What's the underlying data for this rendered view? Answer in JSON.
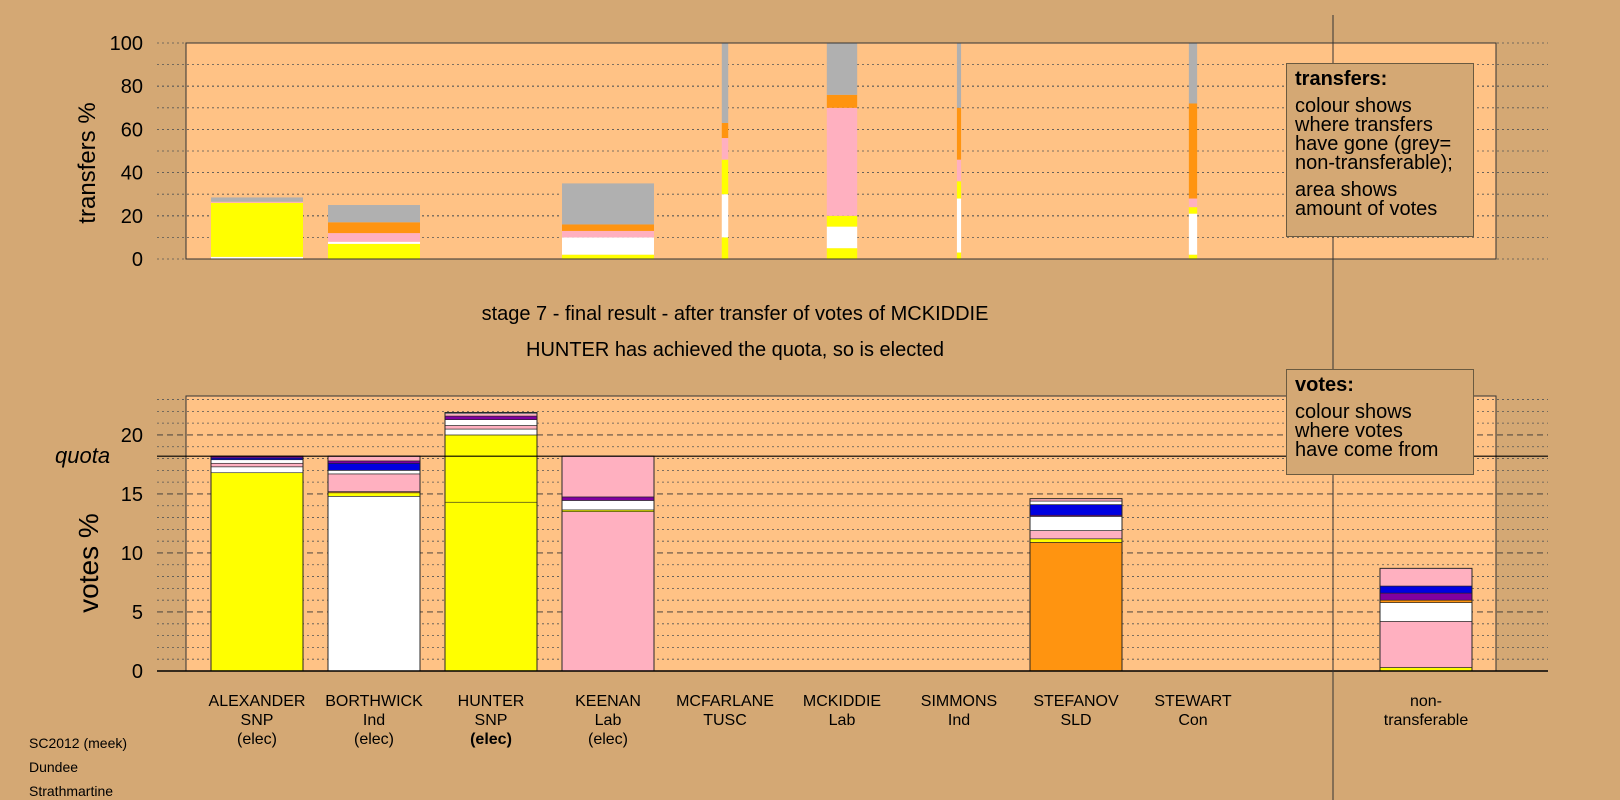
{
  "colors": {
    "background": "#d4a874",
    "plot_background": "#ffc285",
    "SNP": "#ffff00",
    "Ind": "#ffffff",
    "Lab": "#ffb0c0",
    "SLD": "#ff9410",
    "TUSC": "#8000a0",
    "Con": "#0000e0",
    "nontransferable": "#b0b0b0"
  },
  "chart_data": [
    {
      "type": "bar",
      "stacked": true,
      "ylabel": "transfers %",
      "ylim": [
        0,
        100
      ],
      "yticks": [
        0,
        20,
        40,
        60,
        80,
        100
      ],
      "grid": "dotted",
      "categories": [
        "ALEXANDER",
        "BORTHWICK",
        "HUNTER",
        "KEENAN",
        "MCFARLANE",
        "MCKIDDIE",
        "SIMMONS",
        "STEFANOV",
        "STEWART",
        "non-transferable"
      ],
      "bar_width_note": "bar width proportional to amount of votes transferred",
      "bars": [
        {
          "category": "ALEXANDER",
          "width": 1.0,
          "segments": [
            {
              "color": "#ffffff",
              "value": 1
            },
            {
              "color": "#ffff00",
              "value": 25
            },
            {
              "color": "#ffb0c0",
              "value": 0.5
            },
            {
              "color": "#b0b0b0",
              "value": 2
            }
          ]
        },
        {
          "category": "BORTHWICK",
          "width": 1.0,
          "segments": [
            {
              "color": "#ffff00",
              "value": 7
            },
            {
              "color": "#ffffff",
              "value": 1
            },
            {
              "color": "#ffb0c0",
              "value": 4
            },
            {
              "color": "#ff9410",
              "value": 5
            },
            {
              "color": "#b0b0b0",
              "value": 8
            }
          ]
        },
        {
          "category": "KEENAN",
          "width": 1.0,
          "segments": [
            {
              "color": "#ffff00",
              "value": 2
            },
            {
              "color": "#ffffff",
              "value": 8
            },
            {
              "color": "#ffb0c0",
              "value": 3
            },
            {
              "color": "#ff9410",
              "value": 3
            },
            {
              "color": "#b0b0b0",
              "value": 19
            }
          ]
        },
        {
          "category": "MCFARLANE",
          "width": 0.07,
          "segments": [
            {
              "color": "#ffff00",
              "value": 10
            },
            {
              "color": "#ffffff",
              "value": 20
            },
            {
              "color": "#ffff00",
              "value": 16
            },
            {
              "color": "#ffb0c0",
              "value": 10
            },
            {
              "color": "#ff9410",
              "value": 7
            },
            {
              "color": "#b0b0b0",
              "value": 37
            }
          ]
        },
        {
          "category": "MCKIDDIE",
          "width": 0.33,
          "segments": [
            {
              "color": "#ffff00",
              "value": 5
            },
            {
              "color": "#ffffff",
              "value": 10
            },
            {
              "color": "#ffff00",
              "value": 5
            },
            {
              "color": "#ffb0c0",
              "value": 50
            },
            {
              "color": "#ff9410",
              "value": 6
            },
            {
              "color": "#b0b0b0",
              "value": 24
            }
          ]
        },
        {
          "category": "SIMMONS",
          "width": 0.045,
          "segments": [
            {
              "color": "#ffff00",
              "value": 3
            },
            {
              "color": "#ffffff",
              "value": 25
            },
            {
              "color": "#ffff00",
              "value": 8
            },
            {
              "color": "#ffb0c0",
              "value": 10
            },
            {
              "color": "#ff9410",
              "value": 24
            },
            {
              "color": "#b0b0b0",
              "value": 30
            }
          ]
        },
        {
          "category": "STEWART",
          "width": 0.09,
          "segments": [
            {
              "color": "#ffff00",
              "value": 2
            },
            {
              "color": "#ffffff",
              "value": 19
            },
            {
              "color": "#ffff00",
              "value": 3
            },
            {
              "color": "#ffb0c0",
              "value": 4
            },
            {
              "color": "#ff9410",
              "value": 44
            },
            {
              "color": "#b0b0b0",
              "value": 28
            }
          ]
        }
      ]
    },
    {
      "type": "bar",
      "stacked": true,
      "ylabel": "votes %",
      "ylim": [
        0,
        23.3
      ],
      "yticks": [
        0,
        5,
        10,
        15,
        20
      ],
      "grid": "dashed major, dotted minor",
      "quota": 18.2,
      "quota_label": "quota",
      "categories": [
        "ALEXANDER",
        "BORTHWICK",
        "HUNTER",
        "KEENAN",
        "MCFARLANE",
        "MCKIDDIE",
        "SIMMONS",
        "STEFANOV",
        "STEWART",
        "non-transferable"
      ],
      "bars": [
        {
          "category": "ALEXANDER",
          "segments": [
            {
              "color": "#ffff00",
              "value": 16.8
            },
            {
              "color": "#ffffff",
              "value": 0.5
            },
            {
              "color": "#ffb0c0",
              "value": 0.3
            },
            {
              "color": "#ffffff",
              "value": 0.3
            },
            {
              "color": "#0000e0",
              "value": 0.15
            },
            {
              "color": "#8000a0",
              "value": 0.15
            }
          ]
        },
        {
          "category": "BORTHWICK",
          "segments": [
            {
              "color": "#ffffff",
              "value": 14.8
            },
            {
              "color": "#ffff00",
              "value": 0.3
            },
            {
              "color": "#ff9410",
              "value": 0.1
            },
            {
              "color": "#ffb0c0",
              "value": 1.5
            },
            {
              "color": "#ffffff",
              "value": 0.3
            },
            {
              "color": "#0000e0",
              "value": 0.6
            },
            {
              "color": "#8000a0",
              "value": 0.2
            },
            {
              "color": "#ffb0c0",
              "value": 0.4
            }
          ]
        },
        {
          "category": "HUNTER",
          "segments": [
            {
              "color": "#ffff00",
              "value": 14.3
            },
            {
              "color": "#ffff00",
              "value": 5.7
            },
            {
              "color": "#ffffff",
              "value": 0.5
            },
            {
              "color": "#ffb0c0",
              "value": 0.3
            },
            {
              "color": "#ffffff",
              "value": 0.5
            },
            {
              "color": "#8000a0",
              "value": 0.3
            },
            {
              "color": "#ffb0c0",
              "value": 0.2
            },
            {
              "color": "#ffffff",
              "value": 0.1
            }
          ]
        },
        {
          "category": "KEENAN",
          "segments": [
            {
              "color": "#ffb0c0",
              "value": 13.5
            },
            {
              "color": "#ffff00",
              "value": 0.15
            },
            {
              "color": "#ffffff",
              "value": 0.8
            },
            {
              "color": "#8000a0",
              "value": 0.3
            },
            {
              "color": "#ffb0c0",
              "value": 3.45
            }
          ]
        },
        {
          "category": "MCFARLANE",
          "segments": []
        },
        {
          "category": "MCKIDDIE",
          "segments": []
        },
        {
          "category": "SIMMONS",
          "segments": []
        },
        {
          "category": "STEFANOV",
          "segments": [
            {
              "color": "#ff9410",
              "value": 10.9
            },
            {
              "color": "#ffff00",
              "value": 0.3
            },
            {
              "color": "#ffb0c0",
              "value": 0.7
            },
            {
              "color": "#ffffff",
              "value": 1.2
            },
            {
              "color": "#8000a0",
              "value": 0.1
            },
            {
              "color": "#0000e0",
              "value": 0.9
            },
            {
              "color": "#ffffff",
              "value": 0.3
            },
            {
              "color": "#ffb0c0",
              "value": 0.2
            }
          ]
        },
        {
          "category": "STEWART",
          "segments": []
        },
        {
          "category": "non-transferable",
          "segments": [
            {
              "color": "#ffff00",
              "value": 0.3
            },
            {
              "color": "#ffb0c0",
              "value": 3.9
            },
            {
              "color": "#ffffff",
              "value": 1.6
            },
            {
              "color": "#ff9410",
              "value": 0.2
            },
            {
              "color": "#8000a0",
              "value": 0.6
            },
            {
              "color": "#0000e0",
              "value": 0.6
            },
            {
              "color": "#ffb0c0",
              "value": 1.5
            }
          ]
        }
      ]
    }
  ],
  "stage_title": "stage 7 - final result - after transfer of votes of MCKIDDIE",
  "stage_subtitle": "HUNTER has achieved the quota, so is elected",
  "candidates": [
    {
      "name": "ALEXANDER",
      "party": "SNP",
      "status": "(elec)",
      "status_bold": false
    },
    {
      "name": "BORTHWICK",
      "party": "Ind",
      "status": "(elec)",
      "status_bold": false
    },
    {
      "name": "HUNTER",
      "party": "SNP",
      "status": "(elec)",
      "status_bold": true
    },
    {
      "name": "KEENAN",
      "party": "Lab",
      "status": "(elec)",
      "status_bold": false
    },
    {
      "name": "MCFARLANE",
      "party": "TUSC",
      "status": "",
      "status_bold": false
    },
    {
      "name": "MCKIDDIE",
      "party": "Lab",
      "status": "",
      "status_bold": false
    },
    {
      "name": "SIMMONS",
      "party": "Ind",
      "status": "",
      "status_bold": false
    },
    {
      "name": "STEFANOV",
      "party": "SLD",
      "status": "",
      "status_bold": false
    },
    {
      "name": "STEWART",
      "party": "Con",
      "status": "",
      "status_bold": false
    },
    {
      "name": "non-",
      "party": "transferable",
      "status": "",
      "status_bold": false
    }
  ],
  "legend_transfers": {
    "title": "transfers:",
    "lines": [
      "colour shows",
      "where transfers",
      "have gone (grey=",
      "non-transferable);"
    ],
    "lines2": [
      "area shows",
      "amount of votes"
    ]
  },
  "legend_votes": {
    "title": "votes:",
    "lines": [
      "colour shows",
      "where votes",
      "have come from"
    ]
  },
  "source": {
    "line1": "SC2012 (meek)",
    "line2": "Dundee",
    "line3": "Strathmartine"
  }
}
